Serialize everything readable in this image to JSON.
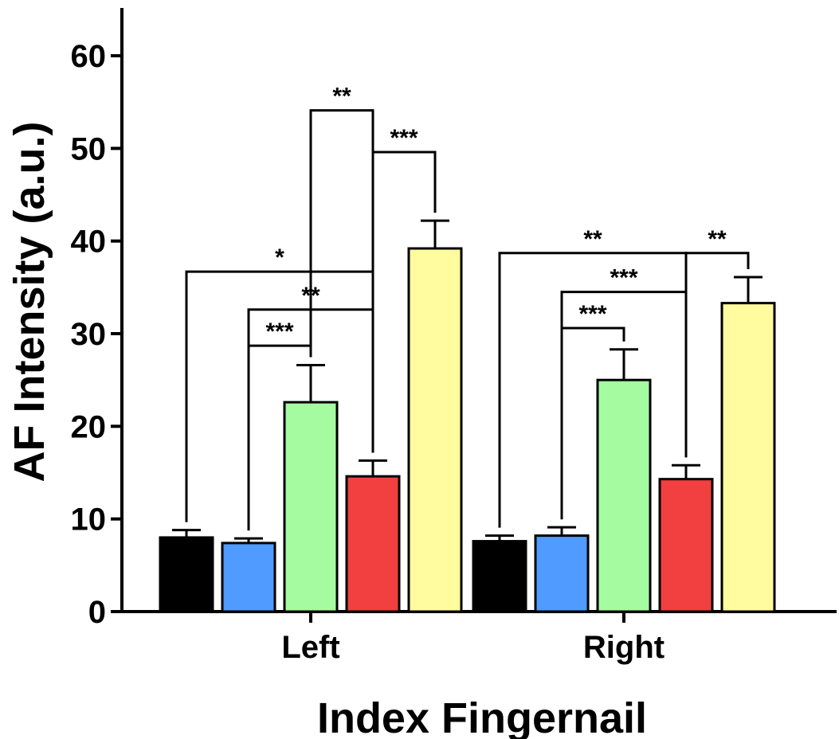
{
  "chart_data": {
    "type": "bar",
    "xlabel": "Index Fingernail",
    "ylabel": "AF Intensity (a.u.)",
    "ylim": [
      0,
      65
    ],
    "yticks": [
      0,
      10,
      20,
      30,
      40,
      50,
      60
    ],
    "grid": false,
    "categories": [
      "Left",
      "Right"
    ],
    "series": [
      {
        "color": "#000000",
        "values": [
          8.0,
          7.6
        ],
        "errors": [
          0.8,
          0.6
        ]
      },
      {
        "color": "#4f9bff",
        "values": [
          7.4,
          8.2
        ],
        "errors": [
          0.5,
          0.9
        ]
      },
      {
        "color": "#a5fca0",
        "values": [
          22.6,
          25.0
        ],
        "errors": [
          4.0,
          3.3
        ]
      },
      {
        "color": "#f23f3f",
        "values": [
          14.6,
          14.3
        ],
        "errors": [
          1.7,
          1.5
        ]
      },
      {
        "color": "#fffb9e",
        "values": [
          39.2,
          33.3
        ],
        "errors": [
          3.0,
          2.8
        ]
      }
    ],
    "significance": [
      {
        "category": 0,
        "from": 2,
        "to": 3,
        "height": 54.1,
        "label": "**"
      },
      {
        "category": 0,
        "from": 3,
        "to": 4,
        "height": 49.6,
        "label": "***"
      },
      {
        "category": 0,
        "from": 0,
        "to": 3,
        "height": 36.7,
        "label": "*"
      },
      {
        "category": 0,
        "from": 1,
        "to": 3,
        "height": 32.6,
        "label": "**"
      },
      {
        "category": 0,
        "from": 1,
        "to": 2,
        "height": 28.7,
        "label": "***"
      },
      {
        "category": 1,
        "from": 0,
        "to": 3,
        "height": 38.7,
        "label": "**"
      },
      {
        "category": 1,
        "from": 3,
        "to": 4,
        "height": 38.7,
        "label": "**"
      },
      {
        "category": 1,
        "from": 1,
        "to": 3,
        "height": 34.5,
        "label": "***"
      },
      {
        "category": 1,
        "from": 1,
        "to": 2,
        "height": 30.6,
        "label": "***"
      }
    ]
  }
}
